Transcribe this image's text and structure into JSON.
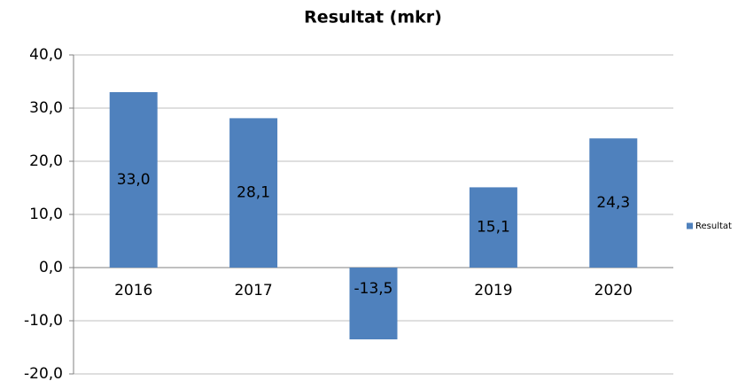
{
  "chart_data": {
    "type": "bar",
    "title": "Resultat (mkr)",
    "categories": [
      "2016",
      "2017",
      "2018",
      "2019",
      "2020"
    ],
    "series": [
      {
        "name": "Resultat",
        "color": "#4f81bd",
        "values": [
          33.0,
          28.1,
          -13.5,
          15.1,
          24.3
        ],
        "value_labels": [
          "33,0",
          "28,1",
          "-13,5",
          "15,1",
          "24,3"
        ]
      }
    ],
    "ylim": [
      -20,
      40
    ],
    "yticks": [
      {
        "value": -20,
        "label": "-20,0"
      },
      {
        "value": -10,
        "label": "-10,0"
      },
      {
        "value": 0,
        "label": "0,0"
      },
      {
        "value": 10,
        "label": "10,0"
      },
      {
        "value": 20,
        "label": "20,0"
      },
      {
        "value": 30,
        "label": "30,0"
      },
      {
        "value": 40,
        "label": "40,0"
      }
    ],
    "grid": true,
    "legend": "right"
  }
}
